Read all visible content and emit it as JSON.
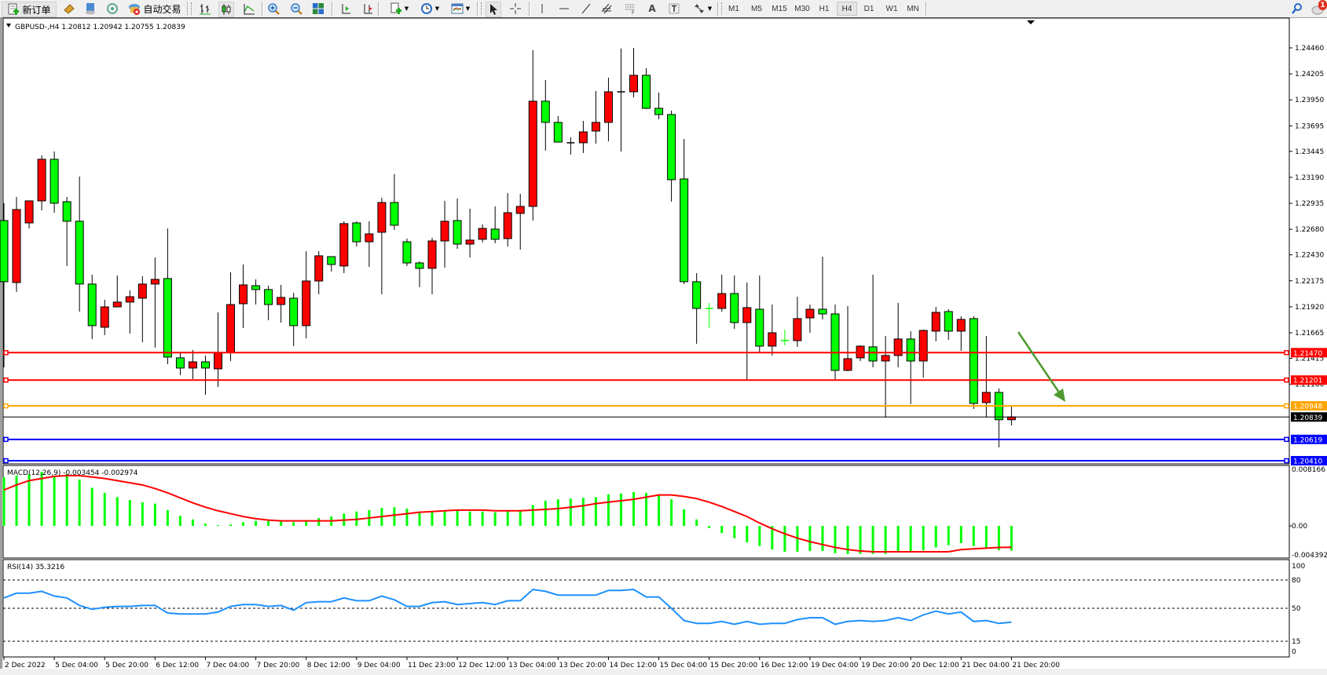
{
  "toolbar": {
    "new_order_label": "新订单",
    "auto_trading_label": "自动交易",
    "icons": [
      "new-order-icon",
      "market-watch-icon",
      "data-window-icon",
      "navigator-icon",
      "auto-trading-icon",
      "bar-chart-icon",
      "candlestick-icon",
      "line-chart-icon",
      "zoom-in-icon",
      "zoom-out-icon",
      "tile-windows-icon",
      "auto-scroll-icon",
      "chart-shift-icon",
      "new-chart-icon",
      "periods-icon",
      "templates-icon",
      "cursor-icon",
      "crosshair-icon",
      "vertical-line-icon",
      "horizontal-line-icon",
      "trendline-icon",
      "equidistant-channel-icon",
      "fibonacci-icon",
      "text-icon",
      "text-label-icon",
      "arrows-icon",
      "search-icon",
      "notification-icon"
    ],
    "text_tool_label": "A",
    "timeframes": [
      "M1",
      "M5",
      "M15",
      "M30",
      "H1",
      "H4",
      "D1",
      "W1",
      "MN"
    ],
    "active_timeframe": "H4",
    "notification_count": "1"
  },
  "chart": {
    "header": "GBPUSD-,H4  1.20812 1.20942 1.20755 1.20839",
    "symbol": "GBPUSD-",
    "timeframe": "H4",
    "bull_color": "#ff0000",
    "bear_color": "#00ff00"
  },
  "chart_data": [
    {
      "type": "candlestick",
      "title": "GBPUSD-,H4",
      "columns": [
        "open",
        "high",
        "low",
        "close"
      ],
      "x_tick_labels": [
        "2 Dec 2022",
        "5 Dec 04:00",
        "5 Dec 20:00",
        "6 Dec 12:00",
        "7 Dec 04:00",
        "7 Dec 20:00",
        "8 Dec 12:00",
        "9 Dec 04:00",
        "11 Dec 23:00",
        "12 Dec 12:00",
        "13 Dec 04:00",
        "13 Dec 20:00",
        "14 Dec 12:00",
        "15 Dec 04:00",
        "15 Dec 20:00",
        "16 Dec 12:00",
        "19 Dec 04:00",
        "19 Dec 20:00",
        "20 Dec 12:00",
        "21 Dec 04:00",
        "21 Dec 20:00"
      ],
      "bars_per_x_tick": 4,
      "y_tick_labels": [
        "1.24460",
        "1.24205",
        "1.23950",
        "1.23695",
        "1.23445",
        "1.23190",
        "1.22935",
        "1.22680",
        "1.22430",
        "1.22175",
        "1.21920",
        "1.21665",
        "1.21415",
        "1.21160"
      ],
      "ylim": [
        1.2039,
        1.2454
      ],
      "current_price": {
        "value": 1.20839,
        "label": "1.20839",
        "color": "#000000"
      },
      "horizontal_lines": [
        {
          "value": 1.2147,
          "label": "1.21470",
          "color": "#ff0000"
        },
        {
          "value": 1.21201,
          "label": "1.21201",
          "color": "#ff0000"
        },
        {
          "value": 1.20948,
          "label": "1.20948",
          "color": "#ffa500"
        },
        {
          "value": 1.20619,
          "label": "1.20619",
          "color": "#0000ff"
        },
        {
          "value": 1.2041,
          "label": "1.20410",
          "color": "#0000ff"
        }
      ],
      "annotation_arrow": {
        "color": "#4e9a2e",
        "direction": "down"
      },
      "ohlc": [
        [
          1.22766,
          1.22936,
          1.21326,
          1.22166
        ],
        [
          1.22158,
          1.22997,
          1.22066,
          1.22874
        ],
        [
          1.22743,
          1.22959,
          1.22689,
          1.22959
        ],
        [
          1.22959,
          1.23405,
          1.22866,
          1.23367
        ],
        [
          1.23367,
          1.23444,
          1.22843,
          1.22936
        ],
        [
          1.22951,
          1.22997,
          1.2232,
          1.22759
        ],
        [
          1.22759,
          1.23198,
          1.21873,
          1.22143
        ],
        [
          1.22143,
          1.22235,
          1.21604,
          1.21735
        ],
        [
          1.21719,
          1.21989,
          1.21642,
          1.21919
        ],
        [
          1.21919,
          1.22227,
          1.21919,
          1.21966
        ],
        [
          1.21966,
          1.22081,
          1.21658,
          1.22019
        ],
        [
          1.22004,
          1.2222,
          1.21573,
          1.22143
        ],
        [
          1.22143,
          1.22404,
          1.21519,
          1.22189
        ],
        [
          1.22197,
          1.22689,
          1.21357,
          1.21427
        ],
        [
          1.21419,
          1.21473,
          1.21249,
          1.21319
        ],
        [
          1.21319,
          1.21496,
          1.21211,
          1.2138
        ],
        [
          1.2138,
          1.21442,
          1.21057,
          1.21319
        ],
        [
          1.21311,
          1.21865,
          1.21134,
          1.21473
        ],
        [
          1.21473,
          1.22258,
          1.21388,
          1.21942
        ],
        [
          1.2195,
          1.22335,
          1.21711,
          1.22135
        ],
        [
          1.22127,
          1.22189,
          1.21942,
          1.22089
        ],
        [
          1.22089,
          1.22127,
          1.21788,
          1.21942
        ],
        [
          1.21942,
          1.22135,
          1.21765,
          1.22012
        ],
        [
          1.22004,
          1.22058,
          1.21534,
          1.21735
        ],
        [
          1.21735,
          1.22466,
          1.21611,
          1.22173
        ],
        [
          1.22173,
          1.22466,
          1.22043,
          1.2242
        ],
        [
          1.22412,
          1.22412,
          1.22266,
          1.22335
        ],
        [
          1.2232,
          1.22759,
          1.2225,
          1.22736
        ],
        [
          1.22743,
          1.22759,
          1.22512,
          1.22558
        ],
        [
          1.22558,
          1.22759,
          1.22312,
          1.22635
        ],
        [
          1.22651,
          1.2299,
          1.22043,
          1.22943
        ],
        [
          1.22943,
          1.23221,
          1.22674,
          1.2272
        ],
        [
          1.22558,
          1.22589,
          1.2232,
          1.2235
        ],
        [
          1.2235,
          1.22366,
          1.22112,
          1.22297
        ],
        [
          1.22297,
          1.22597,
          1.22043,
          1.22566
        ],
        [
          1.22566,
          1.22959,
          1.22304,
          1.22759
        ],
        [
          1.22766,
          1.22982,
          1.22489,
          1.22535
        ],
        [
          1.22535,
          1.22882,
          1.22404,
          1.22574
        ],
        [
          1.22582,
          1.22728,
          1.22551,
          1.22689
        ],
        [
          1.22682,
          1.22905,
          1.22543,
          1.22582
        ],
        [
          1.22589,
          1.23036,
          1.22512,
          1.22843
        ],
        [
          1.22836,
          1.23028,
          1.22481,
          1.22905
        ],
        [
          1.22905,
          1.24437,
          1.22766,
          1.23937
        ],
        [
          1.23937,
          1.24145,
          1.23452,
          1.23729
        ],
        [
          1.23729,
          1.2379,
          1.23536,
          1.23536
        ],
        [
          1.23529,
          1.23583,
          1.23413,
          1.23532
        ],
        [
          1.23529,
          1.23744,
          1.23429,
          1.23636
        ],
        [
          1.23644,
          1.24037,
          1.23521,
          1.23729
        ],
        [
          1.23729,
          1.24168,
          1.23544,
          1.24029
        ],
        [
          1.24029,
          1.24453,
          1.23444,
          1.24032
        ],
        [
          1.24029,
          1.2446,
          1.23975,
          1.24191
        ],
        [
          1.24191,
          1.2426,
          1.2386,
          1.23867
        ],
        [
          1.23867,
          1.24021,
          1.2376,
          1.23806
        ],
        [
          1.23806,
          1.23844,
          1.22951,
          1.23167
        ],
        [
          1.23174,
          1.23567,
          1.22143,
          1.22166
        ],
        [
          1.22166,
          1.2225,
          1.21557,
          1.21904
        ],
        [
          1.21904,
          1.21958,
          1.21711,
          1.21901
        ],
        [
          1.21904,
          1.22235,
          1.21873,
          1.2205
        ],
        [
          1.2205,
          1.22227,
          1.21704,
          1.21765
        ],
        [
          1.21765,
          1.22158,
          1.21196,
          1.21912
        ],
        [
          1.21896,
          1.22227,
          1.21473,
          1.21534
        ],
        [
          1.21534,
          1.21942,
          1.21442,
          1.21665
        ],
        [
          1.2159,
          1.21696,
          1.21542,
          1.21588
        ],
        [
          1.21588,
          1.22019,
          1.21527,
          1.21804
        ],
        [
          1.21811,
          1.21942,
          1.21665,
          1.21896
        ],
        [
          1.21896,
          1.22412,
          1.21796,
          1.2185
        ],
        [
          1.2185,
          1.21942,
          1.21211,
          1.21296
        ],
        [
          1.21296,
          1.21927,
          1.21288,
          1.21411
        ],
        [
          1.21419,
          1.21542,
          1.21388,
          1.21534
        ],
        [
          1.21527,
          1.22235,
          1.21326,
          1.21388
        ],
        [
          1.21388,
          1.21634,
          1.20834,
          1.21442
        ],
        [
          1.21442,
          1.21958,
          1.21326,
          1.21604
        ],
        [
          1.21604,
          1.21681,
          1.20965,
          1.21388
        ],
        [
          1.21388,
          1.21696,
          1.21226,
          1.21688
        ],
        [
          1.21681,
          1.21919,
          1.21581,
          1.21865
        ],
        [
          1.21873,
          1.21896,
          1.21596,
          1.21681
        ],
        [
          1.21681,
          1.21827,
          1.21488,
          1.21796
        ],
        [
          1.21804,
          1.21827,
          1.20918,
          1.20972
        ],
        [
          1.2098,
          1.21634,
          1.20834,
          1.2108
        ],
        [
          1.2108,
          1.21119,
          1.20541,
          1.20812
        ],
        [
          1.20812,
          1.20942,
          1.20755,
          1.20839
        ]
      ]
    },
    {
      "type": "bar+line",
      "label": "MACD(12,26,9) -0.003454 -0.002974",
      "y_tick_labels": [
        "0.008166",
        "0.00",
        "-0.004392"
      ],
      "ylim": [
        -0.004392,
        0.008166
      ],
      "histogram_color": "#00ff00",
      "signal_color": "#ff0000",
      "histogram": [
        0.00678,
        0.007,
        0.00721,
        0.00754,
        0.007,
        0.0072,
        0.00645,
        0.0053,
        0.0046,
        0.004,
        0.0036,
        0.0033,
        0.0031,
        0.0022,
        0.0014,
        0.0009,
        0.0003,
        0.0001,
        0.0002,
        0.0005,
        0.0007,
        0.0007,
        0.0007,
        0.0005,
        0.0008,
        0.0011,
        0.0013,
        0.0017,
        0.002,
        0.0022,
        0.0025,
        0.0026,
        0.0024,
        0.002,
        0.002,
        0.0021,
        0.0022,
        0.002,
        0.002,
        0.0019,
        0.0021,
        0.0021,
        0.0029,
        0.0035,
        0.0037,
        0.0038,
        0.0039,
        0.004,
        0.0044,
        0.0045,
        0.0047,
        0.0046,
        0.0044,
        0.0037,
        0.0023,
        0.0009,
        -0.0003,
        -0.001,
        -0.0017,
        -0.0023,
        -0.0028,
        -0.0033,
        -0.0036,
        -0.0036,
        -0.0035,
        -0.0035,
        -0.0038,
        -0.0039,
        -0.0039,
        -0.0039,
        -0.0039,
        -0.0035,
        -0.0035,
        -0.0034,
        -0.003,
        -0.0027,
        -0.0024,
        -0.0028,
        -0.0031,
        -0.0034,
        -0.003454
      ],
      "signal": [
        0.005,
        0.0057,
        0.0063,
        0.0066,
        0.0069,
        0.007,
        0.007,
        0.0068,
        0.0066,
        0.0063,
        0.006,
        0.0057,
        0.0052,
        0.0046,
        0.0039,
        0.0032,
        0.0026,
        0.0021,
        0.0017,
        0.0013,
        0.001,
        0.0008,
        0.0007,
        0.0007,
        0.0007,
        0.0007,
        0.0007,
        0.0008,
        0.0009,
        0.0011,
        0.0013,
        0.0015,
        0.0017,
        0.0019,
        0.002,
        0.0021,
        0.0022,
        0.0022,
        0.0022,
        0.0021,
        0.0021,
        0.0021,
        0.0022,
        0.0023,
        0.0024,
        0.0026,
        0.0028,
        0.0031,
        0.0033,
        0.0035,
        0.0037,
        0.004,
        0.0043,
        0.0043,
        0.0041,
        0.0038,
        0.0033,
        0.0027,
        0.002,
        0.0013,
        0.0004,
        -0.0004,
        -0.0011,
        -0.0017,
        -0.0022,
        -0.0026,
        -0.003,
        -0.0033,
        -0.0035,
        -0.0036,
        -0.0036,
        -0.0036,
        -0.0036,
        -0.0036,
        -0.0036,
        -0.0036,
        -0.0033,
        -0.0032,
        -0.0031,
        -0.003,
        -0.002974
      ]
    },
    {
      "type": "line",
      "label": "RSI(14) 35.3216",
      "y_tick_labels": [
        "100",
        "80",
        "50",
        "15",
        "0"
      ],
      "levels": [
        80,
        50,
        15
      ],
      "ylim": [
        0,
        100
      ],
      "line_color": "#1e90ff",
      "values": [
        61,
        66,
        66,
        68,
        63,
        61,
        53,
        49,
        51,
        52,
        52,
        53,
        53,
        45,
        44,
        44,
        44,
        46,
        52,
        54,
        54,
        52,
        53,
        48,
        56,
        57,
        57,
        61,
        58,
        58,
        63,
        59,
        52,
        52,
        56,
        57,
        54,
        55,
        56,
        54,
        58,
        58,
        70,
        68,
        64,
        64,
        64,
        64,
        69,
        69,
        70,
        62,
        62,
        50,
        37,
        34,
        34,
        36,
        33,
        36,
        33,
        34,
        34,
        38,
        40,
        40,
        33,
        36,
        37,
        36,
        37,
        40,
        37,
        43,
        47,
        44,
        46,
        36,
        37,
        34,
        35.3216
      ]
    }
  ]
}
